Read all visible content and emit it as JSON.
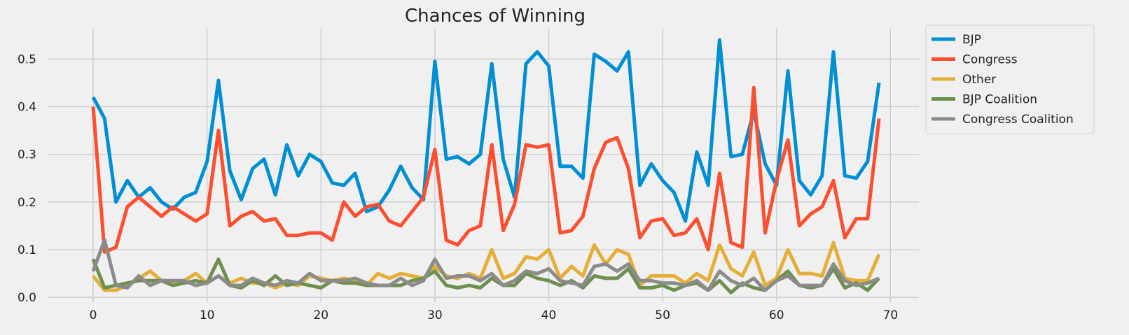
{
  "chart_data": {
    "type": "line",
    "title": "Chances of Winning",
    "xlabel": "",
    "ylabel": "",
    "xlim": [
      -4,
      72.5
    ],
    "ylim": [
      -0.01,
      0.565
    ],
    "xticks": [
      0,
      10,
      20,
      30,
      40,
      50,
      60,
      70
    ],
    "yticks": [
      0.0,
      0.1,
      0.2,
      0.3,
      0.4,
      0.5
    ],
    "xtick_labels": [
      "0",
      "10",
      "20",
      "30",
      "40",
      "50",
      "60",
      "70"
    ],
    "ytick_labels": [
      "0.0",
      "0.1",
      "0.2",
      "0.3",
      "0.4",
      "0.5"
    ],
    "grid": true,
    "legend_placement": "outside-top-right",
    "x": [
      0,
      1,
      2,
      3,
      4,
      5,
      6,
      7,
      8,
      9,
      10,
      11,
      12,
      13,
      14,
      15,
      16,
      17,
      18,
      19,
      20,
      21,
      22,
      23,
      24,
      25,
      26,
      27,
      28,
      29,
      30,
      31,
      32,
      33,
      34,
      35,
      36,
      37,
      38,
      39,
      40,
      41,
      42,
      43,
      44,
      45,
      46,
      47,
      48,
      49,
      50,
      51,
      52,
      53,
      54,
      55,
      56,
      57,
      58,
      59,
      60,
      61,
      62,
      63,
      64,
      65,
      66,
      67,
      68,
      69
    ],
    "series": [
      {
        "name": "BJP",
        "color": "#008fd5",
        "values": [
          0.42,
          0.375,
          0.2,
          0.245,
          0.21,
          0.23,
          0.2,
          0.185,
          0.21,
          0.22,
          0.285,
          0.455,
          0.265,
          0.205,
          0.27,
          0.29,
          0.215,
          0.32,
          0.255,
          0.3,
          0.285,
          0.24,
          0.235,
          0.26,
          0.18,
          0.19,
          0.225,
          0.275,
          0.23,
          0.205,
          0.495,
          0.29,
          0.295,
          0.28,
          0.3,
          0.49,
          0.29,
          0.21,
          0.49,
          0.515,
          0.485,
          0.275,
          0.275,
          0.25,
          0.51,
          0.495,
          0.475,
          0.515,
          0.235,
          0.28,
          0.245,
          0.22,
          0.16,
          0.305,
          0.235,
          0.54,
          0.295,
          0.3,
          0.39,
          0.28,
          0.235,
          0.475,
          0.245,
          0.215,
          0.255,
          0.515,
          0.255,
          0.25,
          0.285,
          0.45
        ]
      },
      {
        "name": "Congress",
        "color": "#fc4f30",
        "values": [
          0.4,
          0.095,
          0.105,
          0.19,
          0.21,
          0.19,
          0.17,
          0.19,
          0.175,
          0.16,
          0.175,
          0.35,
          0.15,
          0.17,
          0.18,
          0.16,
          0.165,
          0.13,
          0.13,
          0.135,
          0.135,
          0.12,
          0.2,
          0.17,
          0.19,
          0.195,
          0.16,
          0.15,
          0.18,
          0.21,
          0.31,
          0.12,
          0.11,
          0.14,
          0.15,
          0.32,
          0.14,
          0.195,
          0.32,
          0.315,
          0.32,
          0.135,
          0.14,
          0.17,
          0.27,
          0.325,
          0.335,
          0.27,
          0.125,
          0.16,
          0.165,
          0.13,
          0.135,
          0.165,
          0.1,
          0.26,
          0.115,
          0.105,
          0.44,
          0.135,
          0.245,
          0.33,
          0.15,
          0.175,
          0.19,
          0.245,
          0.125,
          0.165,
          0.165,
          0.375
        ]
      },
      {
        "name": "Other",
        "color": "#e5ae38",
        "values": [
          0.045,
          0.015,
          0.015,
          0.025,
          0.04,
          0.055,
          0.035,
          0.03,
          0.035,
          0.05,
          0.03,
          0.045,
          0.03,
          0.04,
          0.03,
          0.03,
          0.02,
          0.03,
          0.025,
          0.045,
          0.04,
          0.035,
          0.04,
          0.035,
          0.025,
          0.05,
          0.04,
          0.05,
          0.045,
          0.04,
          0.065,
          0.045,
          0.04,
          0.05,
          0.04,
          0.1,
          0.04,
          0.05,
          0.085,
          0.08,
          0.1,
          0.04,
          0.065,
          0.045,
          0.11,
          0.07,
          0.1,
          0.09,
          0.025,
          0.045,
          0.045,
          0.045,
          0.03,
          0.05,
          0.035,
          0.11,
          0.06,
          0.045,
          0.095,
          0.025,
          0.04,
          0.1,
          0.05,
          0.05,
          0.045,
          0.115,
          0.04,
          0.035,
          0.035,
          0.09
        ]
      },
      {
        "name": "BJP Coalition",
        "color": "#6d904f",
        "values": [
          0.08,
          0.02,
          0.025,
          0.03,
          0.035,
          0.035,
          0.035,
          0.025,
          0.03,
          0.035,
          0.03,
          0.08,
          0.025,
          0.02,
          0.035,
          0.025,
          0.045,
          0.025,
          0.03,
          0.025,
          0.02,
          0.035,
          0.03,
          0.03,
          0.025,
          0.025,
          0.025,
          0.025,
          0.035,
          0.04,
          0.055,
          0.025,
          0.02,
          0.025,
          0.02,
          0.04,
          0.025,
          0.025,
          0.05,
          0.04,
          0.035,
          0.025,
          0.035,
          0.02,
          0.045,
          0.04,
          0.04,
          0.06,
          0.02,
          0.02,
          0.025,
          0.015,
          0.025,
          0.03,
          0.015,
          0.035,
          0.01,
          0.03,
          0.02,
          0.015,
          0.035,
          0.055,
          0.025,
          0.02,
          0.025,
          0.06,
          0.02,
          0.03,
          0.015,
          0.04
        ]
      },
      {
        "name": "Congress Coalition",
        "color": "#8b8b8b",
        "values": [
          0.055,
          0.12,
          0.025,
          0.02,
          0.045,
          0.025,
          0.035,
          0.035,
          0.035,
          0.025,
          0.03,
          0.045,
          0.025,
          0.025,
          0.04,
          0.03,
          0.025,
          0.035,
          0.03,
          0.05,
          0.035,
          0.035,
          0.035,
          0.04,
          0.03,
          0.025,
          0.025,
          0.04,
          0.025,
          0.035,
          0.08,
          0.04,
          0.045,
          0.045,
          0.035,
          0.05,
          0.025,
          0.035,
          0.055,
          0.05,
          0.06,
          0.035,
          0.03,
          0.025,
          0.065,
          0.07,
          0.055,
          0.07,
          0.035,
          0.035,
          0.03,
          0.03,
          0.025,
          0.035,
          0.015,
          0.055,
          0.035,
          0.025,
          0.04,
          0.015,
          0.035,
          0.045,
          0.025,
          0.025,
          0.025,
          0.07,
          0.035,
          0.025,
          0.03,
          0.04
        ]
      }
    ]
  }
}
